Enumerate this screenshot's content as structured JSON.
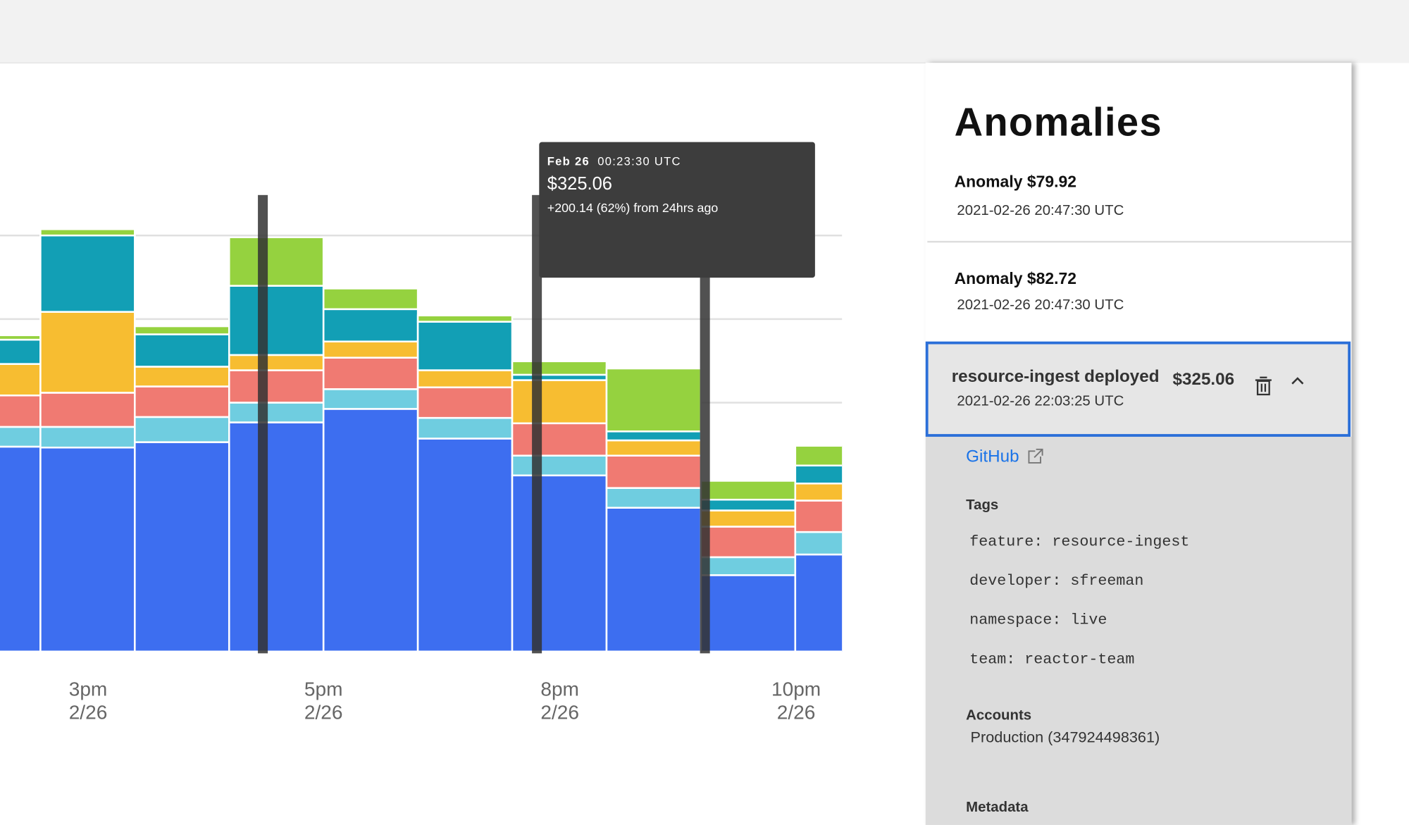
{
  "chart_data": {
    "type": "stepped-stacked-bar",
    "categories": [
      null,
      null,
      null,
      null,
      null,
      null,
      null,
      null,
      null,
      null
    ],
    "series": [
      {
        "name": null,
        "color": "#3d6ef0",
        "values": [
          228,
          227,
          233,
          255,
          270,
          237,
          196,
          160,
          85,
          108
        ]
      },
      {
        "name": null,
        "color": "#6fcde0",
        "values": [
          22,
          23,
          28,
          22,
          22,
          23,
          22,
          22,
          20,
          25
        ]
      },
      {
        "name": null,
        "color": "#f07a72",
        "values": [
          35,
          38,
          34,
          36,
          35,
          34,
          36,
          36,
          34,
          35
        ]
      },
      {
        "name": null,
        "color": "#f7bd31",
        "values": [
          35,
          90,
          22,
          17,
          18,
          19,
          48,
          17,
          18,
          19
        ]
      },
      {
        "name": null,
        "color": "#129fb5",
        "values": [
          27,
          85,
          36,
          77,
          36,
          54,
          6,
          10,
          12,
          20
        ]
      },
      {
        "name": null,
        "color": "#95d23f",
        "values": [
          5,
          7,
          9,
          54,
          23,
          7,
          15,
          70,
          21,
          22
        ]
      }
    ],
    "ylim": [
      0,
      560
    ],
    "yticks": [
      277,
      370,
      463
    ],
    "grid": true,
    "x_labels": [
      {
        "time": "3pm",
        "date": "2/26"
      },
      {
        "time": "5pm",
        "date": "2/26"
      },
      {
        "time": "8pm",
        "date": "2/26"
      },
      {
        "time": "10pm",
        "date": "2/26"
      }
    ],
    "tooltip": {
      "date": "Feb 26",
      "time": "00:23:30 UTC",
      "value": "$325.06",
      "change": "+200.14 (62%) from 24hrs ago"
    }
  },
  "panel": {
    "title": "Anomalies",
    "anomalies": [
      {
        "title": "Anomaly $79.92",
        "time": "2021-02-26 20:47:30 UTC"
      },
      {
        "title": "Anomaly $82.72",
        "time": "2021-02-26 20:47:30 UTC"
      }
    ],
    "selected": {
      "name": "resource-ingest deployed",
      "amount": "$325.06",
      "time": "2021-02-26 22:03:25 UTC",
      "link": "GitHub",
      "tags_heading": "Tags",
      "tags": [
        "feature: resource-ingest",
        "developer: sfreeman",
        "namespace: live",
        "team: reactor-team"
      ],
      "accounts_heading": "Accounts",
      "accounts": [
        "Production (347924498361)"
      ],
      "metadata_heading": "Metadata"
    }
  }
}
